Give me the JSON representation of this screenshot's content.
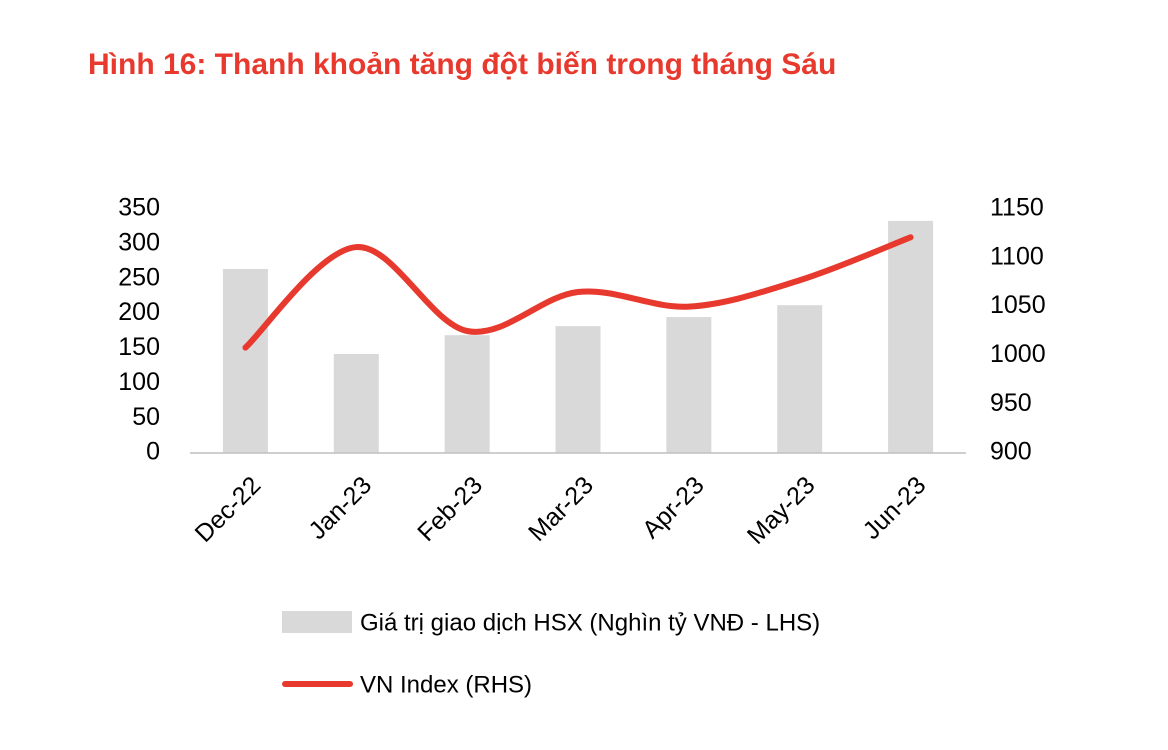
{
  "chart_data": {
    "type": "bar",
    "title": "Hình 16: Thanh khoản tăng đột biến trong tháng Sáu",
    "categories": [
      "Dec-22",
      "Jan-23",
      "Feb-23",
      "Mar-23",
      "Apr-23",
      "May-23",
      "Jun-23"
    ],
    "series": [
      {
        "name": "Giá trị giao dịch HSX (Nghìn tỷ VNĐ - LHS)",
        "type": "bar",
        "color": "#d9d9d9",
        "values": [
          264,
          142,
          169,
          182,
          195,
          212,
          333
        ]
      },
      {
        "name": "VN Index (RHS)",
        "type": "line",
        "axis": "y2",
        "color": "#e8392e",
        "values": [
          1008,
          1111,
          1025,
          1065,
          1050,
          1077,
          1121
        ]
      }
    ],
    "ylim": [
      0,
      350
    ],
    "yticks": [
      0,
      50,
      100,
      150,
      200,
      250,
      300,
      350
    ],
    "y2lim": [
      900,
      1150
    ],
    "y2ticks": [
      900,
      950,
      1000,
      1050,
      1100,
      1150
    ],
    "grid": false
  }
}
